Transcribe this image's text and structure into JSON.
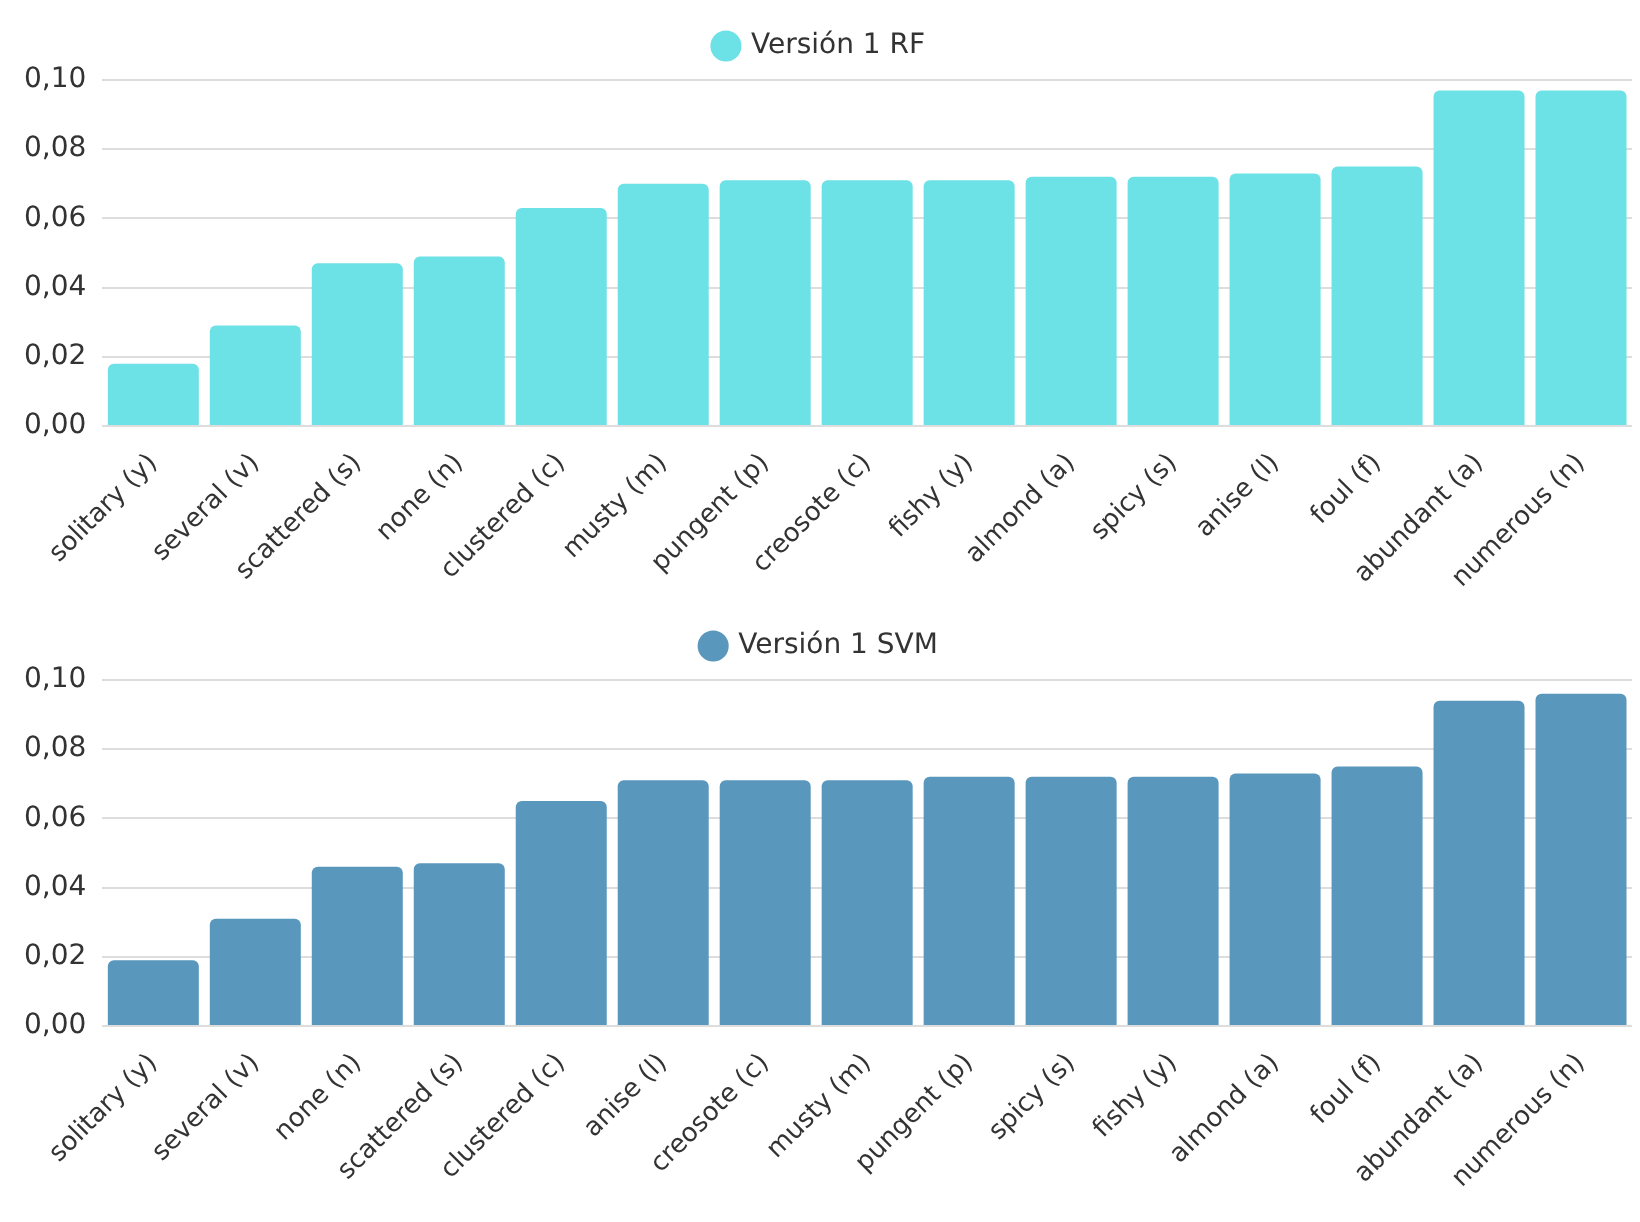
{
  "chart_data": [
    {
      "type": "bar",
      "categories": [
        "solitary (y)",
        "several (v)",
        "scattered (s)",
        "none (n)",
        "clustered (c)",
        "musty (m)",
        "pungent (p)",
        "creosote (c)",
        "fishy (y)",
        "almond (a)",
        "spicy (s)",
        "anise (l)",
        "foul (f)",
        "abundant (a)",
        "numerous (n)"
      ],
      "series": [
        {
          "name": "Versión 1 RF",
          "color": "#6ce1e6",
          "values": [
            0.018,
            0.029,
            0.047,
            0.049,
            0.063,
            0.07,
            0.071,
            0.071,
            0.071,
            0.072,
            0.072,
            0.073,
            0.075,
            0.097,
            0.097
          ]
        }
      ],
      "ylim": [
        0,
        0.1
      ],
      "yticks": [
        {
          "value": 0,
          "label": "0,00"
        },
        {
          "value": 0.02,
          "label": "0,02"
        },
        {
          "value": 0.04,
          "label": "0,04"
        },
        {
          "value": 0.06,
          "label": "0,06"
        },
        {
          "value": 0.08,
          "label": "0,08"
        },
        {
          "value": 0.1,
          "label": "0,10"
        }
      ],
      "grid": "y",
      "legend": "top"
    },
    {
      "type": "bar",
      "categories": [
        "solitary (y)",
        "several (v)",
        "none (n)",
        "scattered (s)",
        "clustered (c)",
        "anise (l)",
        "creosote (c)",
        "musty (m)",
        "pungent (p)",
        "spicy (s)",
        "fishy (y)",
        "almond (a)",
        "foul (f)",
        "abundant (a)",
        "numerous (n)"
      ],
      "series": [
        {
          "name": "Versión 1 SVM",
          "color": "#5a97bc",
          "values": [
            0.019,
            0.031,
            0.046,
            0.047,
            0.065,
            0.071,
            0.071,
            0.071,
            0.072,
            0.072,
            0.072,
            0.073,
            0.075,
            0.094,
            0.096
          ]
        }
      ],
      "ylim": [
        0,
        0.1
      ],
      "yticks": [
        {
          "value": 0,
          "label": "0,00"
        },
        {
          "value": 0.02,
          "label": "0,02"
        },
        {
          "value": 0.04,
          "label": "0,04"
        },
        {
          "value": 0.06,
          "label": "0,06"
        },
        {
          "value": 0.08,
          "label": "0,08"
        },
        {
          "value": 0.1,
          "label": "0,10"
        }
      ],
      "grid": "y",
      "legend": "top"
    }
  ]
}
